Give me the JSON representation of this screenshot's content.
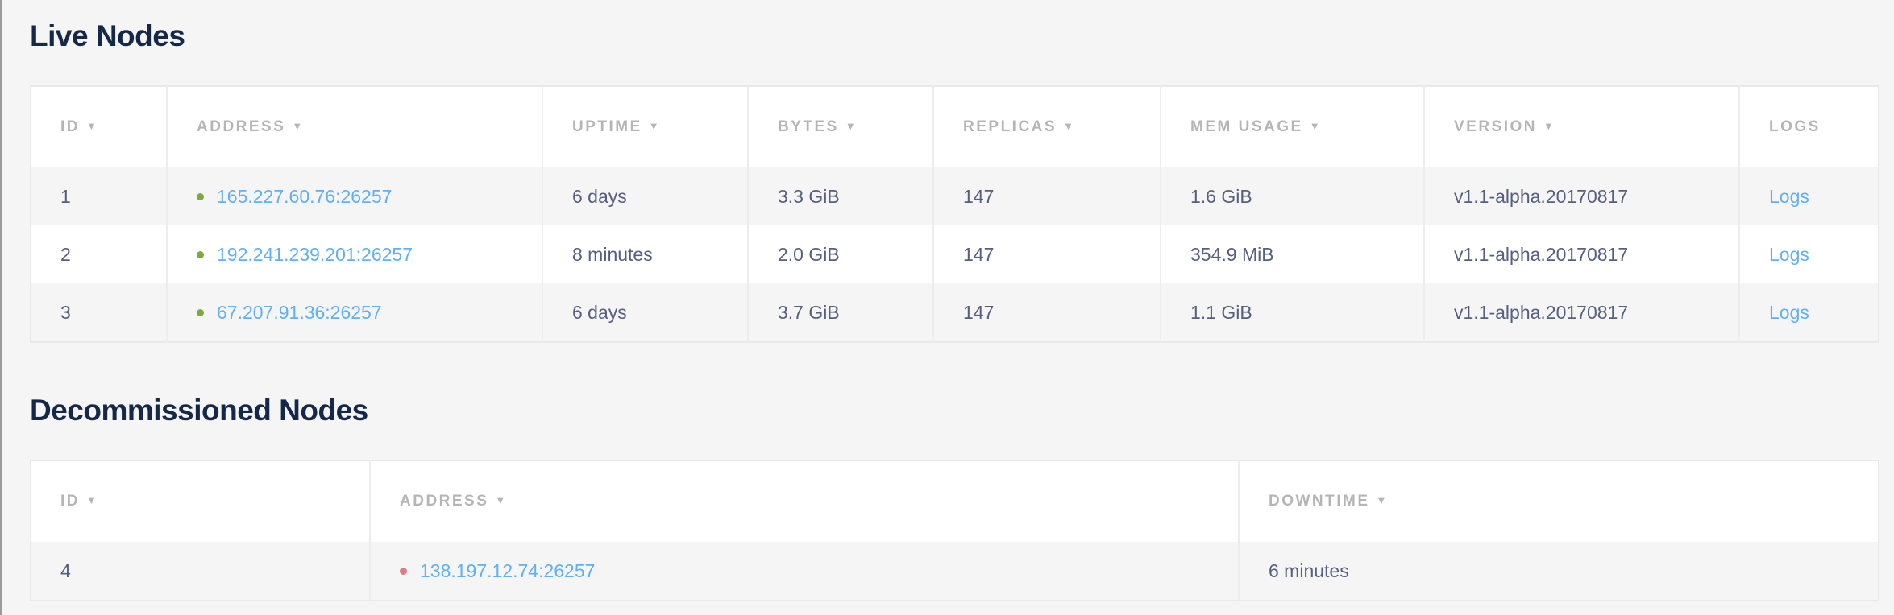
{
  "colors": {
    "live_status": "#7cab3b",
    "dead_status": "#e27a83",
    "link": "#5fb0f4",
    "title": "#152849"
  },
  "live": {
    "title": "Live Nodes",
    "columns": [
      "ID",
      "ADDRESS",
      "UPTIME",
      "BYTES",
      "REPLICAS",
      "MEM USAGE",
      "VERSION",
      "LOGS"
    ],
    "sortable": [
      true,
      true,
      true,
      true,
      true,
      true,
      true,
      false
    ],
    "sort_icon": "▼",
    "rows": [
      {
        "id": "1",
        "address": "165.227.60.76:26257",
        "uptime": "6 days",
        "bytes": "3.3 GiB",
        "replicas": "147",
        "mem": "1.6 GiB",
        "version": "v1.1-alpha.20170817",
        "logs": "Logs"
      },
      {
        "id": "2",
        "address": "192.241.239.201:26257",
        "uptime": "8 minutes",
        "bytes": "2.0 GiB",
        "replicas": "147",
        "mem": "354.9 MiB",
        "version": "v1.1-alpha.20170817",
        "logs": "Logs"
      },
      {
        "id": "3",
        "address": "67.207.91.36:26257",
        "uptime": "6 days",
        "bytes": "3.7 GiB",
        "replicas": "147",
        "mem": "1.1 GiB",
        "version": "v1.1-alpha.20170817",
        "logs": "Logs"
      }
    ]
  },
  "decommissioned": {
    "title": "Decommissioned Nodes",
    "columns": [
      "ID",
      "ADDRESS",
      "DOWNTIME"
    ],
    "rows": [
      {
        "id": "4",
        "address": "138.197.12.74:26257",
        "downtime": "6 minutes"
      }
    ]
  }
}
